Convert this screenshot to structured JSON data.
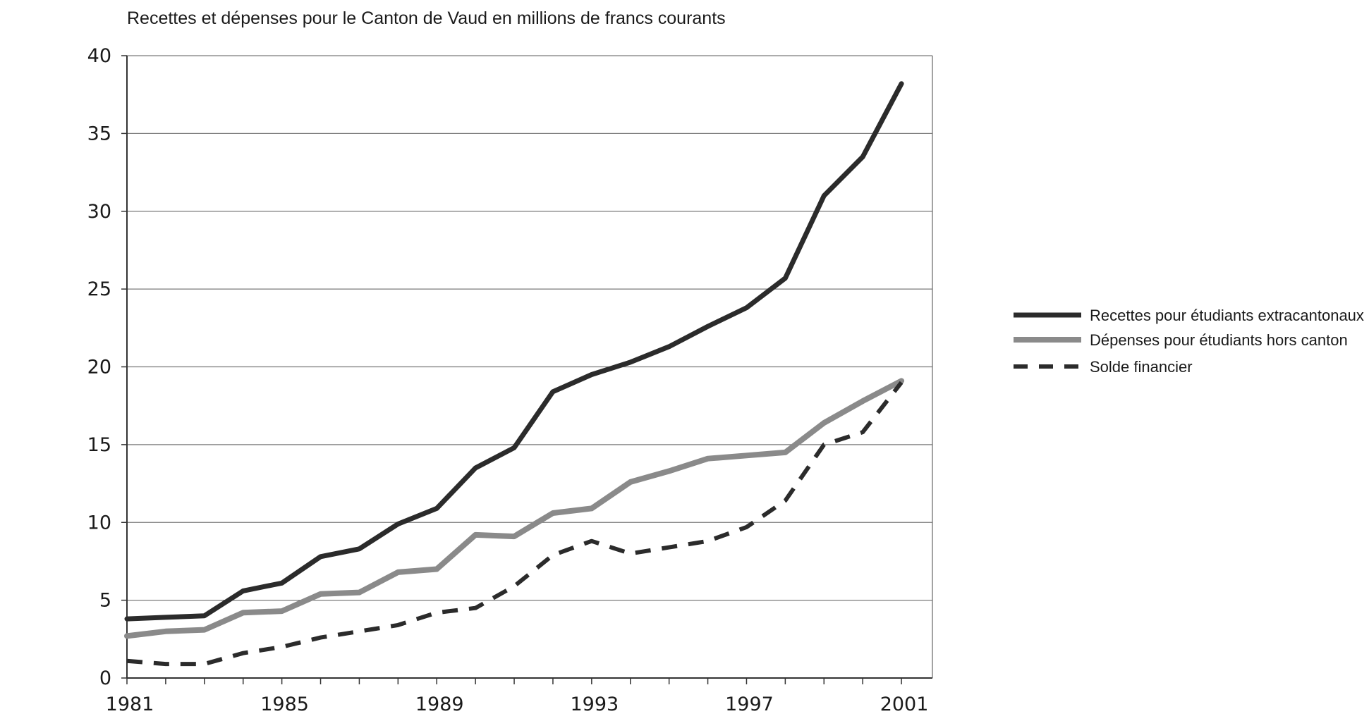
{
  "chart_data": {
    "type": "line",
    "title": "Recettes et dépenses pour le Canton de Vaud en millions de francs courants",
    "xlabel": "",
    "ylabel": "",
    "x": [
      1981,
      1982,
      1983,
      1984,
      1985,
      1986,
      1987,
      1988,
      1989,
      1990,
      1991,
      1992,
      1993,
      1994,
      1995,
      1996,
      1997,
      1998,
      1999,
      2000,
      2001
    ],
    "x_ticks": [
      "1981",
      "1985",
      "1989",
      "1993",
      "1997",
      "2001"
    ],
    "y_ticks": [
      "0",
      "5",
      "10",
      "15",
      "20",
      "25",
      "30",
      "35",
      "40"
    ],
    "xlim": [
      1981,
      2001.8
    ],
    "ylim": [
      0,
      40
    ],
    "grid": "horizontal",
    "legend_position": "right",
    "series": [
      {
        "name": "Recettes pour étudiants extracantonaux",
        "color": "#2b2b2b",
        "style": "solid",
        "values": [
          3.8,
          3.9,
          4.0,
          5.6,
          6.1,
          7.8,
          8.3,
          9.9,
          10.9,
          13.5,
          14.8,
          18.4,
          19.5,
          20.3,
          21.3,
          22.6,
          23.8,
          25.7,
          31.0,
          33.5,
          38.2
        ]
      },
      {
        "name": "Dépenses pour étudiants  hors canton",
        "color": "#8a8a8a",
        "style": "solid",
        "values": [
          2.7,
          3.0,
          3.1,
          4.2,
          4.3,
          5.4,
          5.5,
          6.8,
          7.0,
          9.2,
          9.1,
          10.6,
          10.9,
          12.6,
          13.3,
          14.1,
          14.3,
          14.5,
          16.4,
          17.8,
          19.1
        ]
      },
      {
        "name": "Solde financier",
        "color": "#2b2b2b",
        "style": "dashed",
        "values": [
          1.1,
          0.9,
          0.9,
          1.6,
          2.0,
          2.6,
          3.0,
          3.4,
          4.2,
          4.5,
          5.9,
          7.9,
          8.8,
          8.0,
          8.4,
          8.8,
          9.7,
          11.4,
          15.0,
          15.8,
          19.0
        ]
      }
    ]
  }
}
